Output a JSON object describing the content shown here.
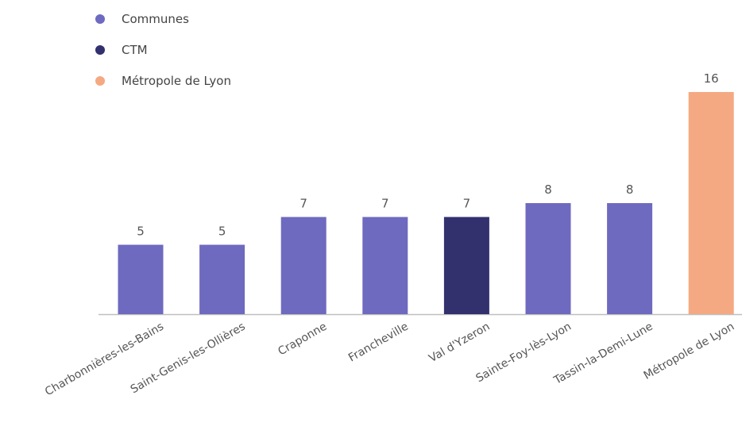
{
  "legend": [
    {
      "label": "Communes",
      "color": "#6e6abf"
    },
    {
      "label": "CTM",
      "color": "#32306d"
    },
    {
      "label": "Métropole de Lyon",
      "color": "#f5a982"
    }
  ],
  "chart_data": {
    "type": "bar",
    "categories": [
      "Charbonnières-les-Bains",
      "Saint-Genis-les-Ollières",
      "Craponne",
      "Francheville",
      "Val d'Yzeron",
      "Sainte-Foy-lès-Lyon",
      "Tassin-la-Demi-Lune",
      "Métropole de Lyon"
    ],
    "values": [
      5,
      5,
      7,
      7,
      7,
      8,
      8,
      16
    ],
    "labels": [
      "5",
      "5",
      "7",
      "7",
      "7",
      "8",
      "8",
      "16"
    ],
    "groups": [
      "Communes",
      "Communes",
      "Communes",
      "Communes",
      "CTM",
      "Communes",
      "Communes",
      "Métropole de Lyon"
    ],
    "ylim": [
      0,
      16
    ],
    "grid": false,
    "legend_position": "top-left"
  }
}
